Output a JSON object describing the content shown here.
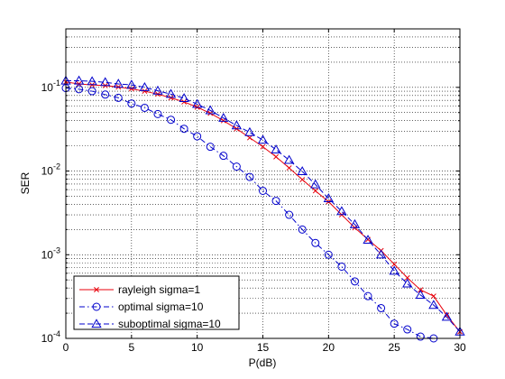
{
  "chart_data": {
    "type": "line",
    "title": "",
    "xlabel": "P(dB)",
    "ylabel": "SER",
    "xscale": "linear",
    "yscale": "log",
    "xlim": [
      0,
      30
    ],
    "ylim": [
      0.0001,
      0.5
    ],
    "xticks": [
      0,
      5,
      10,
      15,
      20,
      25,
      30
    ],
    "xtick_labels": [
      "0",
      "5",
      "10",
      "15",
      "20",
      "25",
      "30"
    ],
    "yticks": [
      {
        "value": 0.0001,
        "base": "10",
        "exp": "-4"
      },
      {
        "value": 0.001,
        "base": "10",
        "exp": "-3"
      },
      {
        "value": 0.01,
        "base": "10",
        "exp": "-2"
      },
      {
        "value": 0.1,
        "base": "10",
        "exp": "-1"
      }
    ],
    "grid": true,
    "legend_position": "bottom-left",
    "series": [
      {
        "name": "rayleigh sigma=1",
        "color": "#e8000b",
        "line": "solid",
        "marker": "x",
        "x": [
          0,
          1,
          2,
          3,
          4,
          5,
          6,
          7,
          8,
          9,
          10,
          11,
          12,
          13,
          14,
          15,
          16,
          17,
          18,
          19,
          20,
          21,
          22,
          23,
          24,
          25,
          26,
          27,
          28,
          29,
          30
        ],
        "y": [
          0.116,
          0.11,
          0.107,
          0.105,
          0.101,
          0.096,
          0.09,
          0.083,
          0.075,
          0.067,
          0.058,
          0.049,
          0.04,
          0.032,
          0.025,
          0.0195,
          0.0148,
          0.0109,
          0.0079,
          0.0058,
          0.0043,
          0.003,
          0.0021,
          0.00152,
          0.00112,
          0.00077,
          0.00053,
          0.00038,
          0.00032,
          0.00019,
          0.00012
        ]
      },
      {
        "name": "optimal sigma=10",
        "color": "#0000cc",
        "line": "dash-dot",
        "marker": "circle",
        "x": [
          0,
          1,
          2,
          3,
          4,
          5,
          6,
          7,
          8,
          9,
          10,
          11,
          12,
          13,
          14,
          15,
          16,
          17,
          18,
          19,
          20,
          21,
          22,
          23,
          24,
          25,
          26,
          27,
          28
        ],
        "y": [
          0.098,
          0.095,
          0.09,
          0.082,
          0.075,
          0.064,
          0.057,
          0.048,
          0.041,
          0.032,
          0.026,
          0.0195,
          0.0152,
          0.0113,
          0.0085,
          0.0058,
          0.0044,
          0.003,
          0.002,
          0.00138,
          0.001,
          0.00072,
          0.00048,
          0.00032,
          0.00023,
          0.00015,
          0.000128,
          0.000105,
          0.0001
        ]
      },
      {
        "name": "suboptimal sigma=10",
        "color": "#0000cc",
        "line": "dash",
        "marker": "triangle",
        "x": [
          0,
          1,
          2,
          3,
          4,
          5,
          6,
          7,
          8,
          9,
          10,
          11,
          12,
          13,
          14,
          15,
          16,
          17,
          18,
          19,
          20,
          21,
          22,
          23,
          24,
          25,
          26,
          27,
          28,
          29,
          30
        ],
        "y": [
          0.12,
          0.12,
          0.118,
          0.115,
          0.11,
          0.107,
          0.1,
          0.091,
          0.083,
          0.074,
          0.063,
          0.053,
          0.043,
          0.035,
          0.029,
          0.0235,
          0.018,
          0.0135,
          0.0099,
          0.0069,
          0.0047,
          0.0033,
          0.0023,
          0.0015,
          0.001,
          0.00064,
          0.00045,
          0.00033,
          0.00025,
          0.00018,
          0.00012
        ]
      }
    ]
  }
}
